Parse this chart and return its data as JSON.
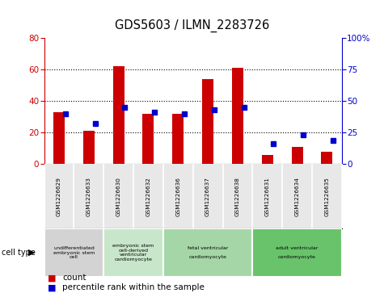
{
  "title": "GDS5603 / ILMN_2283726",
  "samples": [
    "GSM1226629",
    "GSM1226633",
    "GSM1226630",
    "GSM1226632",
    "GSM1226636",
    "GSM1226637",
    "GSM1226638",
    "GSM1226631",
    "GSM1226634",
    "GSM1226635"
  ],
  "counts": [
    33,
    21,
    62,
    32,
    32,
    54,
    61,
    6,
    11,
    8
  ],
  "percentiles": [
    40,
    32,
    45,
    41,
    40,
    43,
    45,
    16,
    23,
    19
  ],
  "ylim_left": [
    0,
    80
  ],
  "ylim_right": [
    0,
    100
  ],
  "yticks_left": [
    0,
    20,
    40,
    60,
    80
  ],
  "yticks_right": [
    0,
    25,
    50,
    75,
    100
  ],
  "ytick_labels_right": [
    "0",
    "25",
    "50",
    "75",
    "100%"
  ],
  "cell_types": [
    {
      "label": "undifferentiated\nembryonic stem\ncell",
      "span": [
        0,
        2
      ],
      "color": "#d3d3d3"
    },
    {
      "label": "embryonic stem\ncell-derived\nventricular\ncardiomyocyte",
      "span": [
        2,
        4
      ],
      "color": "#c8e6c9"
    },
    {
      "label": "fetal ventricular\n\ncardiomyocyte",
      "span": [
        4,
        7
      ],
      "color": "#a5d6a7"
    },
    {
      "label": "adult ventricular\n\ncardiomyocyte",
      "span": [
        7,
        10
      ],
      "color": "#69c36b"
    }
  ],
  "bar_color": "#cc0000",
  "dot_color": "#0000cc",
  "bg_color": "#e8e8e8",
  "left_axis_color": "#cc0000",
  "right_axis_color": "#0000cc",
  "fig_width": 4.75,
  "fig_height": 3.63,
  "dpi": 100
}
